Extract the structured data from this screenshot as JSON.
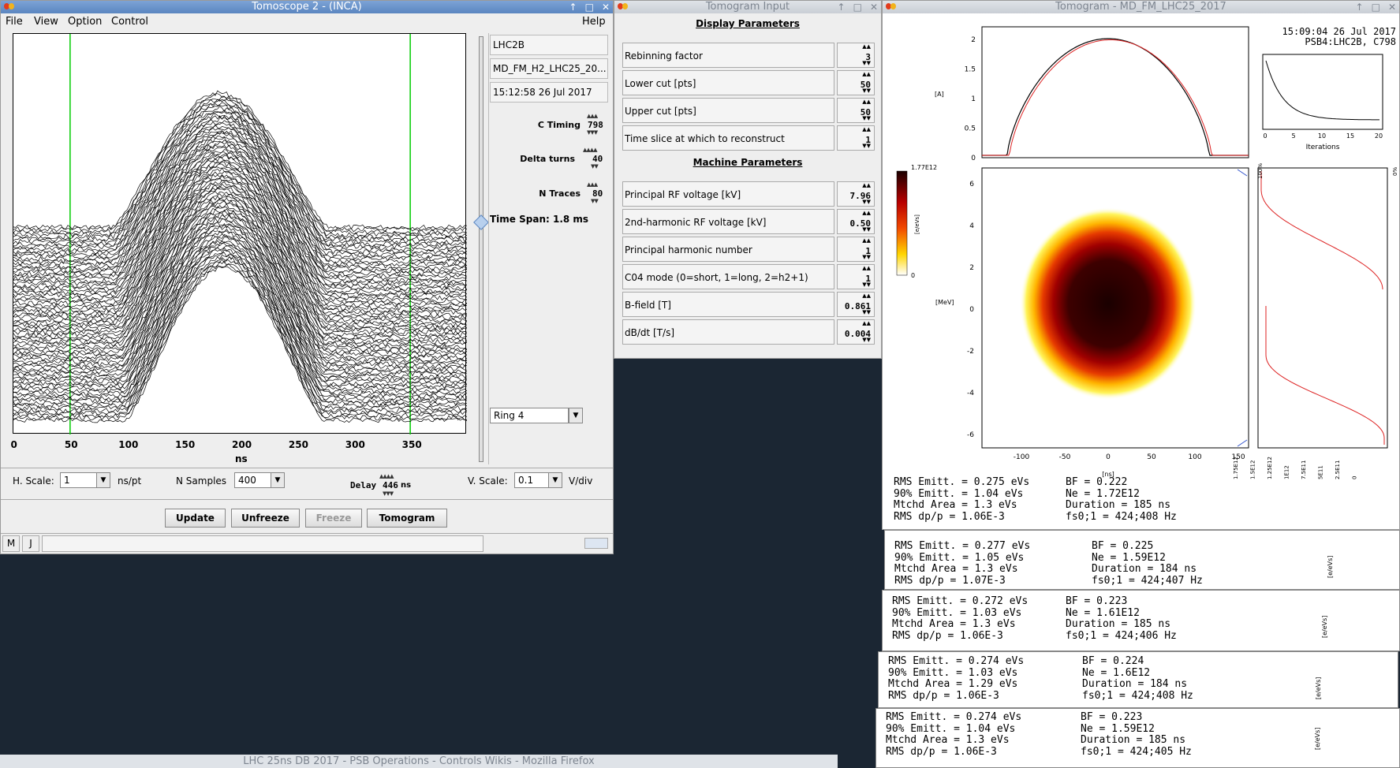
{
  "tomoscope": {
    "title": "Tomoscope 2 - (INCA)",
    "menu": [
      "File",
      "View",
      "Option",
      "Control"
    ],
    "help": "Help",
    "x_ticks": [
      "0",
      "50",
      "100",
      "150",
      "200",
      "250",
      "300",
      "350"
    ],
    "x_unit": "ns",
    "info": {
      "ring": "LHC2B",
      "cycle": "MD_FM_H2_LHC25_20...",
      "timestamp": "15:12:58 26 Jul 2017"
    },
    "c_timing": {
      "label": "C Timing",
      "value": "798"
    },
    "delta_turns": {
      "label": "Delta turns",
      "value": "40"
    },
    "n_traces": {
      "label": "N Traces",
      "value": "80"
    },
    "time_span": "Time Span: 1.8 ms",
    "ring_select": "Ring 4",
    "h_scale": {
      "label": "H. Scale:",
      "value": "1",
      "unit": "ns/pt"
    },
    "n_samples": {
      "label": "N Samples",
      "value": "400"
    },
    "delay": {
      "label": "Delay",
      "value": "446",
      "unit": "ns"
    },
    "v_scale": {
      "label": "V. Scale:",
      "value": "0.1",
      "unit": "V/div"
    },
    "buttons": {
      "update": "Update",
      "unfreeze": "Unfreeze",
      "freeze": "Freeze",
      "tomogram": "Tomogram"
    },
    "status": {
      "m": "M",
      "j": "J"
    }
  },
  "tomo_input": {
    "title": "Tomogram Input",
    "display_title": "Display Parameters",
    "machine_title": "Machine Parameters",
    "display_params": [
      {
        "label": "Rebinning factor",
        "value": "3"
      },
      {
        "label": "Lower cut [pts]",
        "value": "50"
      },
      {
        "label": "Upper cut [pts]",
        "value": "50"
      },
      {
        "label": "Time slice at which to reconstruct",
        "value": "1"
      }
    ],
    "machine_params": [
      {
        "label": "Principal RF voltage [kV]",
        "value": "7.96"
      },
      {
        "label": "2nd-harmonic RF voltage [kV]",
        "value": "0.50"
      },
      {
        "label": "Principal harmonic number",
        "value": "1"
      },
      {
        "label": "C04 mode (0=short, 1=long, 2=h2+1)",
        "value": "1"
      },
      {
        "label": "B-field [T]",
        "value": "0.861"
      },
      {
        "label": "dB/dt [T/s]",
        "value": "0.004"
      }
    ]
  },
  "tomogram": {
    "title": "Tomogram - MD_FM_LHC25_2017",
    "timestamp": "15:09:04 26 Jul 2017",
    "source": "PSB4:LHC2B, C798",
    "profile_yticks": [
      "2",
      "1.5",
      "1",
      "0.5",
      "0"
    ],
    "profile_unit": "[A]",
    "colorbar": {
      "max": "1.77E12",
      "min": "0",
      "unit": "[e/eVs]"
    },
    "phase_yticks": [
      "6",
      "4",
      "2",
      "0",
      "-2",
      "-4",
      "-6"
    ],
    "phase_yunit": "[MeV]",
    "phase_xticks": [
      "-100",
      "-50",
      "0",
      "50",
      "100",
      "150"
    ],
    "phase_xunit": "[ns]",
    "iter_xticks": [
      "0",
      "5",
      "10",
      "15",
      "20"
    ],
    "iter_label": "Iterations",
    "right_pct_top": "100%",
    "right_pct_right": "0%",
    "energy_xticks": [
      "1.75E12",
      "1.5E12",
      "1.25E12",
      "1E12",
      "7.5E11",
      "5E11",
      "2.5E11",
      "0"
    ],
    "energy_unit": "[e/eVs]"
  },
  "results": [
    {
      "rms": "RMS Emitt. = 0.275 eVs",
      "e90": "90% Emitt. = 1.04 eVs",
      "area": "Mtchd Area = 1.3 eVs",
      "dpp": "RMS dp/p = 1.06E-3",
      "bf": "BF = 0.222",
      "ne": "Ne = 1.72E12",
      "dur": "Duration = 185 ns",
      "fs": "fs0;1 = 424;408 Hz"
    },
    {
      "rms": "RMS Emitt. = 0.277 eVs",
      "e90": "90% Emitt. = 1.05 eVs",
      "area": "Mtchd Area = 1.3 eVs",
      "dpp": "RMS dp/p = 1.07E-3",
      "bf": "BF = 0.225",
      "ne": "Ne = 1.59E12",
      "dur": "Duration = 184 ns",
      "fs": "fs0;1 = 424;407 Hz"
    },
    {
      "rms": "RMS Emitt. = 0.272 eVs",
      "e90": "90% Emitt. = 1.03 eVs",
      "area": "Mtchd Area = 1.3 eVs",
      "dpp": "RMS dp/p = 1.06E-3",
      "bf": "BF = 0.223",
      "ne": "Ne = 1.61E12",
      "dur": "Duration = 185 ns",
      "fs": "fs0;1 = 424;406 Hz"
    },
    {
      "rms": "RMS Emitt. = 0.274 eVs",
      "e90": "90% Emitt. = 1.03 eVs",
      "area": "Mtchd Area = 1.29 eVs",
      "dpp": "RMS dp/p = 1.06E-3",
      "bf": "BF = 0.224",
      "ne": "Ne = 1.6E12",
      "dur": "Duration = 184 ns",
      "fs": "fs0;1 = 424;408 Hz"
    },
    {
      "rms": "RMS Emitt. = 0.274 eVs",
      "e90": "90% Emitt. = 1.04 eVs",
      "area": "Mtchd Area = 1.3 eVs",
      "dpp": "RMS dp/p = 1.06E-3",
      "bf": "BF = 0.223",
      "ne": "Ne = 1.59E12",
      "dur": "Duration = 185 ns",
      "fs": "fs0;1 = 424;405 Hz"
    }
  ],
  "firefox_title": "LHC 25ns DB 2017 - PSB Operations - Controls Wikis - Mozilla Firefox",
  "colors": {
    "titlebar_active": "#5b86c0",
    "cursor_line": "#00cc00",
    "profile_red": "#dd2222",
    "desktop": "#1b2633"
  }
}
